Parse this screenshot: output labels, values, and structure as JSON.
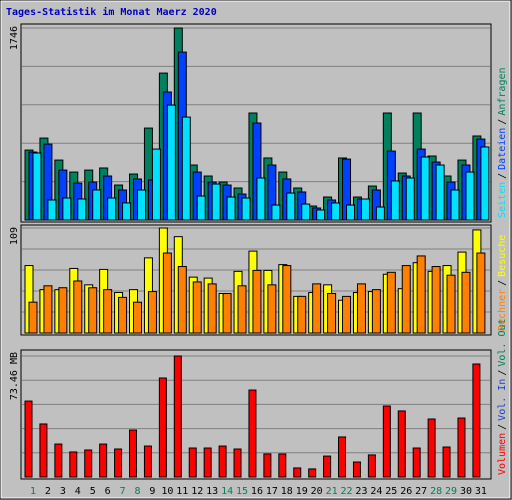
{
  "chart_data": [
    {
      "type": "bar",
      "title": "Tages-Statistik im Monat Maerz 2020",
      "title_color": "#0000c0",
      "ylim": [
        0,
        1746
      ],
      "yticks": [
        1746
      ],
      "legend_separator": "/",
      "series": [
        {
          "name": "Anfragen",
          "color": "#00805c",
          "values": [
            636,
            745,
            545,
            436,
            454,
            473,
            318,
            418,
            836,
            1336,
            1746,
            500,
            400,
            345,
            291,
            973,
            564,
            436,
            291,
            127,
            209,
            564,
            209,
            309,
            973,
            427,
            973,
            582,
            400,
            545,
            764
          ]
        },
        {
          "name": "Dateien",
          "color": "#0040ff",
          "values": [
            618,
            690,
            454,
            336,
            345,
            400,
            273,
            373,
            364,
            1164,
            1527,
            436,
            345,
            318,
            236,
            882,
            500,
            373,
            255,
            109,
            182,
            554,
            191,
            273,
            627,
            400,
            645,
            527,
            345,
            500,
            736
          ]
        },
        {
          "name": "Seiten",
          "color": "#00e0ff",
          "values": [
            609,
            182,
            200,
            191,
            273,
            200,
            155,
            273,
            645,
            1045,
            936,
            218,
            327,
            209,
            200,
            382,
            136,
            245,
            145,
            91,
            155,
            136,
            191,
            118,
            355,
            382,
            573,
            500,
            273,
            436,
            664
          ]
        }
      ]
    },
    {
      "type": "bar",
      "ylim": [
        0,
        109
      ],
      "yticks": [
        109
      ],
      "legend_separator": "/",
      "series": [
        {
          "name": "Besuche",
          "color": "#ffff00",
          "values": [
            70,
            45,
            45,
            67,
            50,
            66,
            42,
            45,
            78,
            109,
            100,
            58,
            57,
            41,
            64,
            85,
            65,
            71,
            38,
            42,
            50,
            34,
            42,
            43,
            61,
            46,
            73,
            64,
            70,
            84,
            107
          ]
        },
        {
          "name": "Rechner",
          "color": "#ff8000",
          "values": [
            32,
            49,
            47,
            54,
            47,
            45,
            37,
            32,
            43,
            83,
            69,
            53,
            51,
            41,
            49,
            65,
            50,
            70,
            38,
            51,
            41,
            38,
            51,
            45,
            63,
            70,
            80,
            69,
            60,
            63,
            83
          ]
        }
      ]
    },
    {
      "type": "bar",
      "ylim": [
        0,
        73.46
      ],
      "yticks": [
        {
          "value": 73.46,
          "label": "73.46 MB"
        }
      ],
      "legend_separator": "/",
      "categories": [
        "1",
        "2",
        "3",
        "4",
        "5",
        "6",
        "7",
        "8",
        "9",
        "10",
        "11",
        "12",
        "13",
        "14",
        "15",
        "16",
        "17",
        "18",
        "19",
        "20",
        "21",
        "22",
        "23",
        "24",
        "25",
        "26",
        "27",
        "28",
        "29",
        "30",
        "31"
      ],
      "weekend_color": "#00805c",
      "weekend_indices": [
        0,
        6,
        7,
        13,
        14,
        20,
        21,
        27,
        28
      ],
      "series": [
        {
          "name": "Volumen",
          "color": "#ff0000",
          "values": [
            46.1,
            32.2,
            20.0,
            15.2,
            16.4,
            20.0,
            17.0,
            28.5,
            18.8,
            60.1,
            73.46,
            17.6,
            17.6,
            18.8,
            17.0,
            52.8,
            14.0,
            14.0,
            5.5,
            4.9,
            12.7,
            24.3,
            9.1,
            13.4,
            43.1,
            40.1,
            17.6,
            35.2,
            18.2,
            35.8,
            68.6
          ]
        }
      ],
      "legend_texts": [
        {
          "text": "Vol. In",
          "color": "#2040c0"
        },
        {
          "text": "Vol. Out",
          "color": "#00805c"
        }
      ]
    }
  ]
}
